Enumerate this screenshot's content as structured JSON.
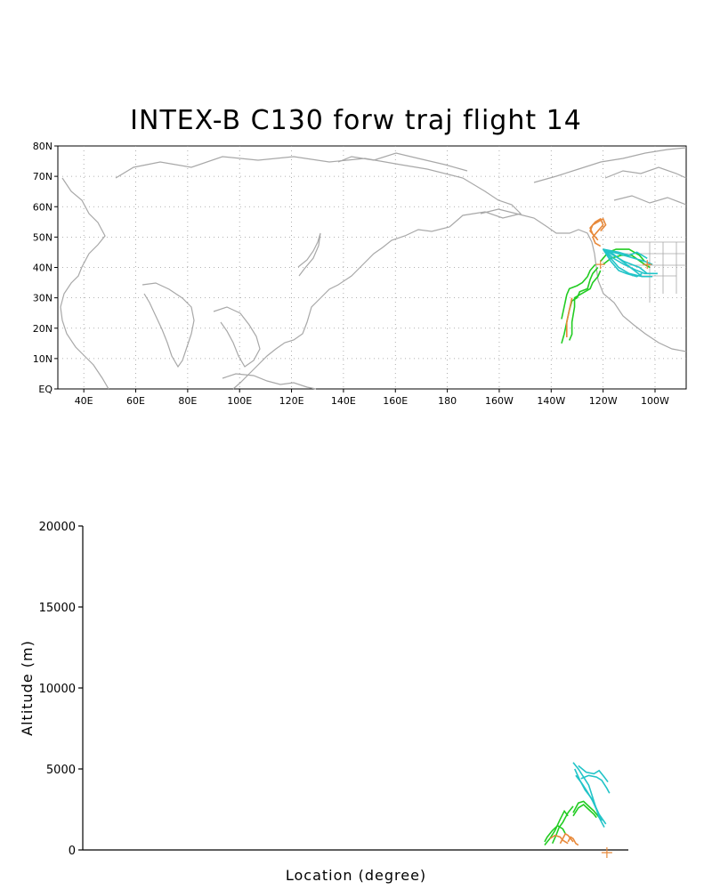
{
  "title": "INTEX-B C130 forw traj flight 14",
  "colors": {
    "land": "#a8a8a8",
    "grid": "#9a9a9a",
    "green": "#22cc22",
    "cyan": "#22c4c8",
    "orange": "#e8893a"
  },
  "chart_data": [
    {
      "type": "map-trajectory",
      "xlim": [
        30,
        272
      ],
      "ylim": [
        0,
        80
      ],
      "lon_ticks": [
        40,
        60,
        80,
        100,
        120,
        140,
        160,
        180,
        200,
        220,
        240,
        260
      ],
      "lon_labels": [
        "40E",
        "60E",
        "80E",
        "100E",
        "120E",
        "140E",
        "160E",
        "180",
        "160W",
        "140W",
        "120W",
        "100W"
      ],
      "lat_ticks": [
        0,
        10,
        20,
        30,
        40,
        50,
        60,
        70,
        80
      ],
      "lat_labels": [
        "EQ",
        "10N",
        "20N",
        "30N",
        "40N",
        "50N",
        "60N",
        "70N",
        "80N"
      ],
      "grid": true,
      "series": [
        {
          "color": "green",
          "tracks": [
            [
              [
                238,
                40
              ],
              [
                236,
                38
              ],
              [
                235,
                36
              ],
              [
                234,
                33
              ],
              [
                231,
                32
              ],
              [
                230,
                30
              ],
              [
                228,
                29
              ],
              [
                227,
                26
              ],
              [
                226,
                22
              ],
              [
                225,
                18
              ],
              [
                224,
                15
              ]
            ],
            [
              [
                237,
                41
              ],
              [
                235,
                39
              ],
              [
                234,
                37
              ],
              [
                232,
                35
              ],
              [
                230,
                34
              ],
              [
                227,
                33
              ],
              [
                226,
                31
              ],
              [
                225,
                27
              ],
              [
                224,
                23
              ]
            ],
            [
              [
                239,
                39
              ],
              [
                238,
                37
              ],
              [
                236,
                35
              ],
              [
                235,
                33
              ],
              [
                233,
                32
              ],
              [
                231,
                31
              ],
              [
                229,
                30
              ],
              [
                229,
                27
              ],
              [
                228,
                22
              ],
              [
                228,
                18
              ],
              [
                227,
                16
              ]
            ],
            [
              [
                239,
                42
              ],
              [
                242,
                45
              ],
              [
                245,
                46
              ],
              [
                250,
                46
              ],
              [
                254,
                44
              ],
              [
                256,
                42
              ]
            ],
            [
              [
                240,
                41
              ],
              [
                243,
                43
              ],
              [
                247,
                44
              ],
              [
                251,
                44
              ],
              [
                256,
                41
              ],
              [
                258,
                40
              ]
            ]
          ]
        },
        {
          "color": "cyan",
          "tracks": [
            [
              [
                240,
                46
              ],
              [
                243,
                45
              ],
              [
                246,
                43
              ],
              [
                249,
                41
              ],
              [
                252,
                39
              ],
              [
                255,
                37
              ]
            ],
            [
              [
                240,
                46
              ],
              [
                244,
                44
              ],
              [
                248,
                42
              ],
              [
                251,
                41
              ],
              [
                254,
                40
              ],
              [
                257,
                38
              ]
            ],
            [
              [
                240,
                46
              ],
              [
                244,
                45
              ],
              [
                248,
                44
              ],
              [
                252,
                43
              ],
              [
                256,
                42
              ],
              [
                259,
                41
              ]
            ],
            [
              [
                240,
                46
              ],
              [
                243,
                43
              ],
              [
                246,
                40
              ],
              [
                250,
                38
              ],
              [
                255,
                37
              ],
              [
                259,
                37
              ]
            ],
            [
              [
                240,
                46
              ],
              [
                244,
                43
              ],
              [
                248,
                41
              ],
              [
                253,
                39
              ],
              [
                256,
                38
              ],
              [
                261,
                38
              ]
            ],
            [
              [
                240,
                46
              ],
              [
                246,
                45
              ],
              [
                250,
                44
              ],
              [
                253,
                45
              ],
              [
                255,
                44
              ],
              [
                257,
                43
              ]
            ],
            [
              [
                240,
                46
              ],
              [
                243,
                42
              ],
              [
                246,
                39
              ],
              [
                249,
                38
              ],
              [
                253,
                37
              ],
              [
                255,
                38
              ]
            ]
          ]
        },
        {
          "color": "orange",
          "tracks": [
            [
              [
                238,
                49
              ],
              [
                236,
                51
              ],
              [
                235,
                53
              ],
              [
                237,
                55
              ],
              [
                239,
                56
              ],
              [
                240,
                54
              ],
              [
                238,
                52
              ],
              [
                236,
                50
              ],
              [
                237,
                48
              ],
              [
                239,
                47
              ]
            ],
            [
              [
                237,
                50
              ],
              [
                235,
                52
              ],
              [
                236,
                54
              ],
              [
                238,
                55
              ],
              [
                240,
                56
              ],
              [
                241,
                54
              ],
              [
                239,
                52
              ]
            ],
            [
              [
                228,
                30
              ],
              [
                227,
                26
              ],
              [
                226,
                22
              ],
              [
                226,
                17
              ]
            ]
          ]
        }
      ],
      "markers": [
        {
          "lon": 257,
          "lat": 41,
          "color": "orange"
        },
        {
          "lon": 239,
          "lat": 41,
          "color": "orange"
        }
      ]
    },
    {
      "type": "line",
      "xlabel": "Location (degree)",
      "ylabel": "Altitude (m)",
      "ylim": [
        0,
        20000
      ],
      "y_ticks": [
        0,
        5000,
        10000,
        15000,
        20000
      ],
      "y_tick_labels": [
        "0",
        "5000",
        "10000",
        "15000",
        "20000"
      ],
      "x_range": [
        0,
        1000
      ],
      "series": [
        {
          "color": "green",
          "tracks": [
            [
              [
                890,
                500
              ],
              [
                895,
                800
              ],
              [
                905,
                1200
              ],
              [
                915,
                1500
              ],
              [
                925,
                1300
              ],
              [
                930,
                1000
              ]
            ],
            [
              [
                890,
                300
              ],
              [
                900,
                700
              ],
              [
                910,
                1200
              ],
              [
                920,
                1900
              ],
              [
                928,
                2400
              ],
              [
                935,
                2100
              ]
            ],
            [
              [
                905,
                400
              ],
              [
                912,
                900
              ],
              [
                918,
                1400
              ],
              [
                925,
                1700
              ],
              [
                935,
                2300
              ],
              [
                945,
                2700
              ]
            ],
            [
              [
                945,
                2100
              ],
              [
                955,
                2600
              ],
              [
                965,
                2800
              ],
              [
                975,
                2500
              ],
              [
                985,
                2200
              ],
              [
                990,
                2000
              ]
            ],
            [
              [
                945,
                2300
              ],
              [
                955,
                2900
              ],
              [
                965,
                3000
              ],
              [
                975,
                2700
              ],
              [
                985,
                2400
              ],
              [
                998,
                1900
              ]
            ]
          ]
        },
        {
          "color": "cyan",
          "tracks": [
            [
              [
                945,
                5400
              ],
              [
                955,
                5000
              ],
              [
                965,
                4500
              ],
              [
                975,
                4000
              ],
              [
                985,
                3000
              ],
              [
                995,
                2000
              ],
              [
                1005,
                1400
              ]
            ],
            [
              [
                948,
                5000
              ],
              [
                958,
                4300
              ],
              [
                968,
                3700
              ],
              [
                980,
                3200
              ],
              [
                990,
                2500
              ],
              [
                1000,
                1800
              ]
            ],
            [
              [
                950,
                4600
              ],
              [
                962,
                4100
              ],
              [
                972,
                3600
              ],
              [
                985,
                2900
              ],
              [
                995,
                2200
              ],
              [
                1008,
                1600
              ]
            ],
            [
              [
                955,
                5200
              ],
              [
                970,
                4800
              ],
              [
                985,
                4700
              ],
              [
                995,
                4900
              ],
              [
                1005,
                4500
              ],
              [
                1012,
                4200
              ]
            ],
            [
              [
                960,
                4400
              ],
              [
                975,
                4600
              ],
              [
                990,
                4500
              ],
              [
                1000,
                4300
              ],
              [
                1010,
                3800
              ],
              [
                1015,
                3500
              ]
            ]
          ]
        },
        {
          "color": "orange",
          "tracks": [
            [
              [
                900,
                700
              ],
              [
                910,
                900
              ],
              [
                920,
                800
              ],
              [
                925,
                600
              ],
              [
                930,
                500
              ],
              [
                935,
                400
              ]
            ],
            [
              [
                920,
                400
              ],
              [
                925,
                700
              ],
              [
                930,
                1000
              ],
              [
                935,
                900
              ],
              [
                940,
                700
              ],
              [
                945,
                500
              ]
            ],
            [
              [
                935,
                500
              ],
              [
                940,
                800
              ],
              [
                945,
                700
              ],
              [
                950,
                400
              ],
              [
                955,
                300
              ]
            ]
          ]
        }
      ],
      "markers": [
        {
          "x": 1010,
          "y": 0,
          "color": "orange"
        }
      ]
    }
  ]
}
